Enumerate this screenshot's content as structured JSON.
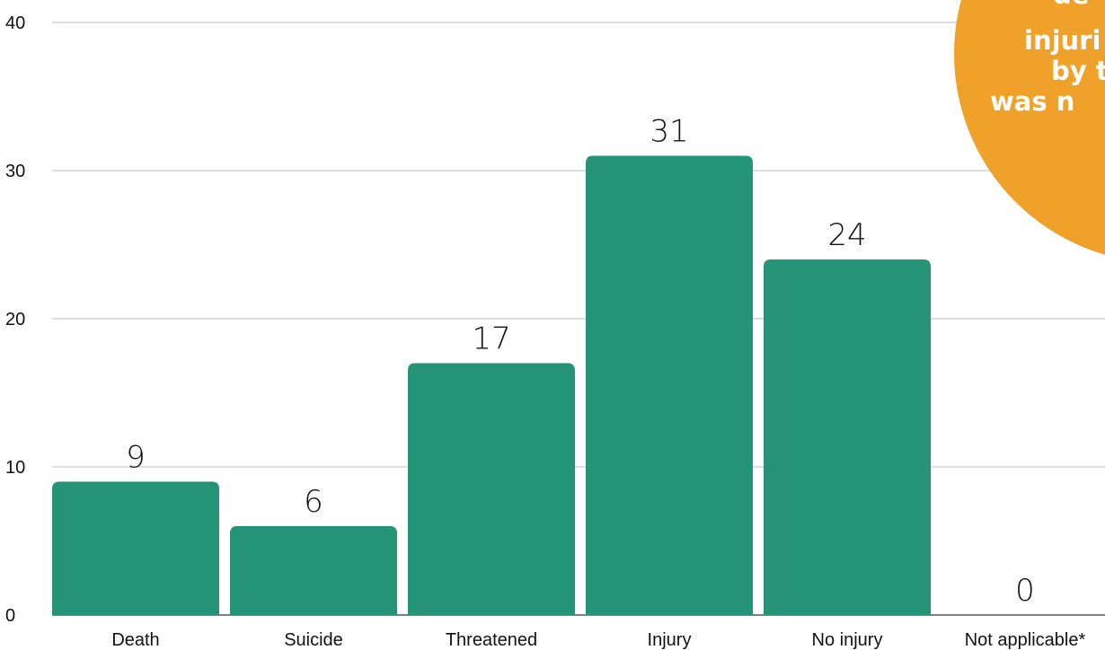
{
  "chart_data": {
    "type": "bar",
    "categories": [
      "Death",
      "Suicide",
      "Threatened",
      "Injury",
      "No injury",
      "Not applicable*"
    ],
    "values": [
      9,
      6,
      17,
      31,
      24,
      0
    ],
    "yticks": [
      0,
      10,
      20,
      30,
      40
    ],
    "ylim": [
      0,
      40
    ],
    "grid": true,
    "title": "",
    "xlabel": "",
    "ylabel": ""
  },
  "colors": {
    "bar": "#249376",
    "grid": "#bdbdbd",
    "axis": "#555555",
    "callout": "#f0a12a"
  },
  "callout": {
    "lines": [
      "de",
      "injuri",
      "by t",
      "was n"
    ]
  }
}
